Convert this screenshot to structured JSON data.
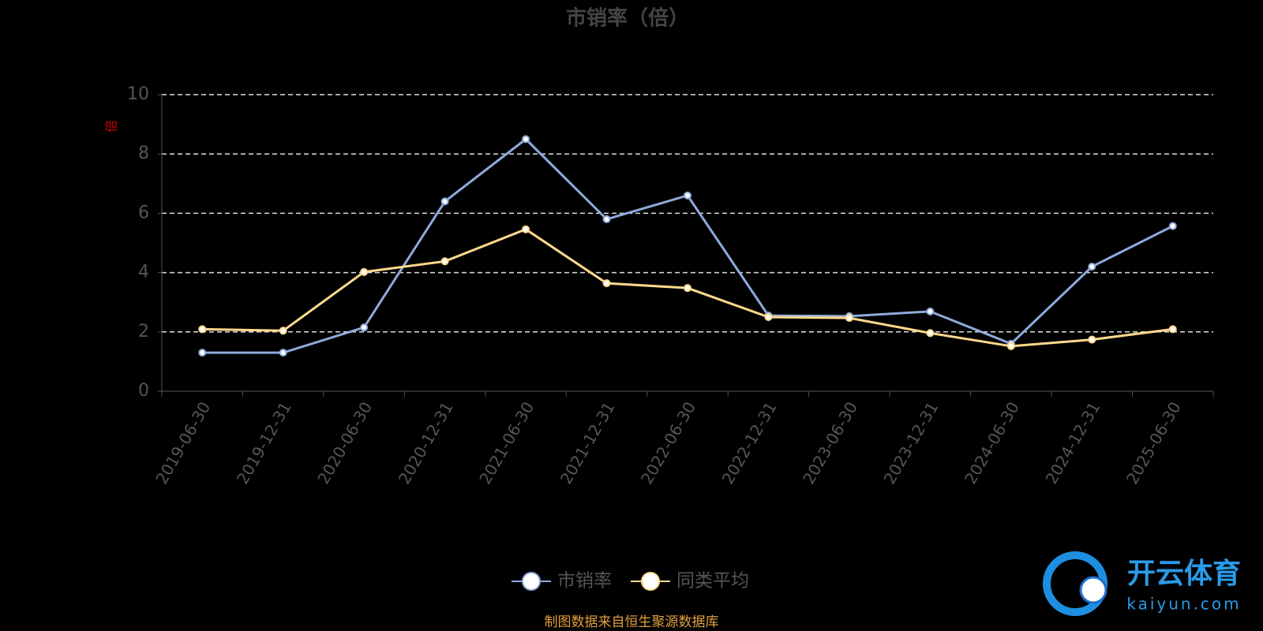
{
  "chart_data": {
    "type": "line",
    "title": "市销率（倍）",
    "y_label": "倍",
    "categories": [
      "2019-06-30",
      "2019-12-31",
      "2020-06-30",
      "2020-12-31",
      "2021-06-30",
      "2021-12-31",
      "2022-06-30",
      "2022-12-31",
      "2023-06-30",
      "2023-12-31",
      "2024-06-30",
      "2024-12-31",
      "2025-06-30"
    ],
    "series": [
      {
        "name": "市销率",
        "color": "#8eaadb",
        "values": [
          1.3,
          1.3,
          2.15,
          6.4,
          8.5,
          5.8,
          6.6,
          2.55,
          2.53,
          2.69,
          1.6,
          4.2,
          5.57
        ]
      },
      {
        "name": "同类平均",
        "color": "#ffd98c",
        "values": [
          2.09,
          2.04,
          4.02,
          4.38,
          5.46,
          3.64,
          3.48,
          2.5,
          2.47,
          1.96,
          1.52,
          1.74,
          2.09
        ]
      }
    ],
    "ylim": [
      0,
      10
    ],
    "yticks": [
      0,
      2,
      4,
      6,
      8,
      10
    ],
    "grid": true,
    "footer": "制图数据来自恒生聚源数据库"
  },
  "watermark": {
    "title": "开云体育",
    "subtitle": "kaiyun.com"
  }
}
